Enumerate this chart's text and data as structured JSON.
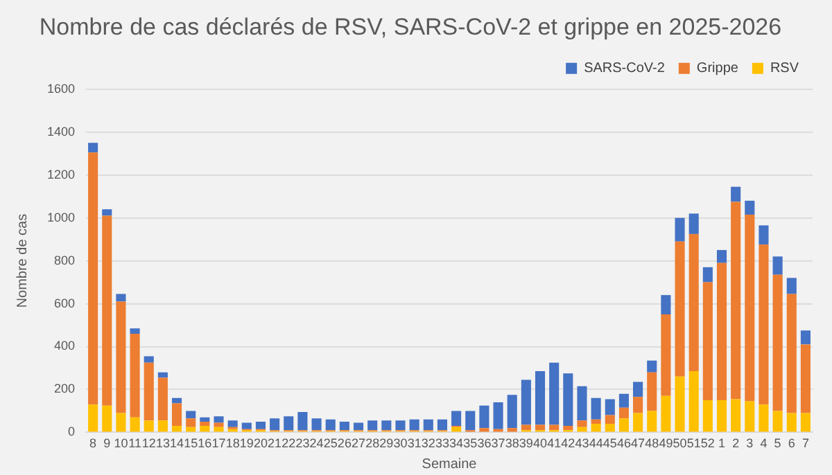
{
  "chart_data": {
    "type": "bar",
    "title": "Nombre de cas déclarés de RSV, SARS-CoV-2 et grippe en 2025-2026",
    "xlabel": "Semaine",
    "ylabel": "Nombre de cas",
    "categories": [
      "8",
      "9",
      "10",
      "11",
      "12",
      "13",
      "14",
      "15",
      "16",
      "17",
      "18",
      "19",
      "20",
      "21",
      "22",
      "23",
      "24",
      "25",
      "26",
      "27",
      "28",
      "29",
      "30",
      "31",
      "32",
      "33",
      "34",
      "35",
      "36",
      "37",
      "38",
      "39",
      "40",
      "41",
      "42",
      "43",
      "44",
      "45",
      "46",
      "47",
      "48",
      "49",
      "50",
      "51",
      "52",
      "1",
      "2",
      "3",
      "4",
      "5",
      "6",
      "7"
    ],
    "stacked": true,
    "ylim": [
      0,
      1600
    ],
    "yticks": [
      0,
      200,
      400,
      600,
      800,
      1000,
      1200,
      1400,
      1600
    ],
    "grid": "y",
    "legend": "top right",
    "series": [
      {
        "name": "RSV",
        "color": "#ffc000",
        "values": [
          130,
          125,
          90,
          70,
          55,
          55,
          30,
          25,
          30,
          25,
          15,
          10,
          10,
          5,
          5,
          5,
          5,
          5,
          5,
          5,
          5,
          5,
          5,
          5,
          5,
          5,
          25,
          null,
          null,
          null,
          null,
          10,
          10,
          10,
          10,
          25,
          40,
          40,
          65,
          90,
          100,
          170,
          260,
          285,
          150,
          150,
          155,
          145,
          130,
          100,
          90,
          90
        ]
      },
      {
        "name": "Grippe",
        "color": "#ed7d31",
        "values": [
          1175,
          885,
          520,
          390,
          270,
          200,
          105,
          40,
          20,
          20,
          10,
          5,
          5,
          5,
          5,
          5,
          5,
          5,
          5,
          5,
          5,
          5,
          5,
          5,
          5,
          5,
          5,
          10,
          20,
          15,
          20,
          25,
          25,
          25,
          20,
          30,
          20,
          40,
          50,
          75,
          180,
          380,
          630,
          640,
          550,
          640,
          920,
          870,
          745,
          635,
          555,
          320
        ]
      },
      {
        "name": "SARS-CoV-2",
        "color": "#4472c4",
        "values": [
          45,
          30,
          35,
          25,
          30,
          25,
          25,
          35,
          20,
          30,
          30,
          30,
          35,
          55,
          65,
          85,
          55,
          50,
          40,
          35,
          45,
          45,
          45,
          50,
          50,
          50,
          70,
          90,
          105,
          125,
          155,
          210,
          250,
          290,
          245,
          160,
          100,
          75,
          65,
          70,
          55,
          90,
          110,
          95,
          70,
          60,
          70,
          65,
          90,
          85,
          75,
          65
        ]
      }
    ]
  }
}
